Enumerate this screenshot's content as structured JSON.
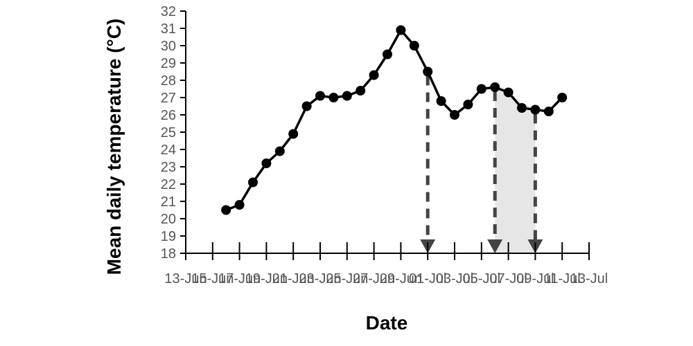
{
  "chart_data": {
    "type": "line",
    "xlabel": "Date",
    "ylabel": "Mean daily temperature (°C)",
    "ylim": [
      18,
      32
    ],
    "xlim": [
      "2020-06-13",
      "2020-07-13"
    ],
    "y_ticks": [
      "18",
      "19",
      "20",
      "21",
      "22",
      "23",
      "24",
      "25",
      "26",
      "27",
      "28",
      "29",
      "30",
      "31",
      "32"
    ],
    "x_ticks": [
      {
        "date": "2020-06-13",
        "label": "13-Jun"
      },
      {
        "date": "2020-06-15",
        "label": "15-Jun"
      },
      {
        "date": "2020-06-17",
        "label": "17-Jun"
      },
      {
        "date": "2020-06-19",
        "label": "19-Jun"
      },
      {
        "date": "2020-06-21",
        "label": "21-Jun"
      },
      {
        "date": "2020-06-23",
        "label": "23-Jun"
      },
      {
        "date": "2020-06-25",
        "label": "25-Jun"
      },
      {
        "date": "2020-06-27",
        "label": "27-Jun"
      },
      {
        "date": "2020-06-29",
        "label": "29-Jun"
      },
      {
        "date": "2020-07-01",
        "label": "01-Jul"
      },
      {
        "date": "2020-07-03",
        "label": "03-Jul"
      },
      {
        "date": "2020-07-05",
        "label": "05-Jul"
      },
      {
        "date": "2020-07-07",
        "label": "07-Jul"
      },
      {
        "date": "2020-07-09",
        "label": "09-Jul"
      },
      {
        "date": "2020-07-11",
        "label": "11-Jul"
      },
      {
        "date": "2020-07-13",
        "label": "13-Jul"
      }
    ],
    "series": [
      {
        "color": "#000000",
        "points": [
          {
            "x": "2020-06-16",
            "y": 20.5
          },
          {
            "x": "2020-06-17",
            "y": 20.8
          },
          {
            "x": "2020-06-18",
            "y": 22.1
          },
          {
            "x": "2020-06-19",
            "y": 23.2
          },
          {
            "x": "2020-06-20",
            "y": 23.9
          },
          {
            "x": "2020-06-21",
            "y": 24.9
          },
          {
            "x": "2020-06-22",
            "y": 26.5
          },
          {
            "x": "2020-06-23",
            "y": 27.1
          },
          {
            "x": "2020-06-24",
            "y": 27.0
          },
          {
            "x": "2020-06-25",
            "y": 27.1
          },
          {
            "x": "2020-06-26",
            "y": 27.4
          },
          {
            "x": "2020-06-27",
            "y": 28.3
          },
          {
            "x": "2020-06-28",
            "y": 29.5
          },
          {
            "x": "2020-06-29",
            "y": 30.9
          },
          {
            "x": "2020-06-30",
            "y": 30.0
          },
          {
            "x": "2020-07-01",
            "y": 28.5
          },
          {
            "x": "2020-07-02",
            "y": 26.8
          },
          {
            "x": "2020-07-03",
            "y": 26.0
          },
          {
            "x": "2020-07-04",
            "y": 26.6
          },
          {
            "x": "2020-07-05",
            "y": 27.5
          },
          {
            "x": "2020-07-06",
            "y": 27.6
          },
          {
            "x": "2020-07-07",
            "y": 27.3
          },
          {
            "x": "2020-07-08",
            "y": 26.4
          },
          {
            "x": "2020-07-09",
            "y": 26.3
          },
          {
            "x": "2020-07-10",
            "y": 26.2
          },
          {
            "x": "2020-07-11",
            "y": 27.0
          }
        ]
      }
    ],
    "markers": [
      {
        "x": "2020-07-01",
        "y": 28.5,
        "style": "dashed-arrow",
        "color": "#444444"
      },
      {
        "x": "2020-07-06",
        "y": 27.6,
        "style": "dashed-arrow",
        "color": "#444444"
      },
      {
        "x": "2020-07-09",
        "y": 26.3,
        "style": "dashed-arrow",
        "color": "#444444"
      }
    ],
    "shaded_region": {
      "x_start": "2020-07-06",
      "x_end": "2020-07-09",
      "color": "#e6e6e6"
    },
    "grid": false,
    "legend": "none"
  }
}
